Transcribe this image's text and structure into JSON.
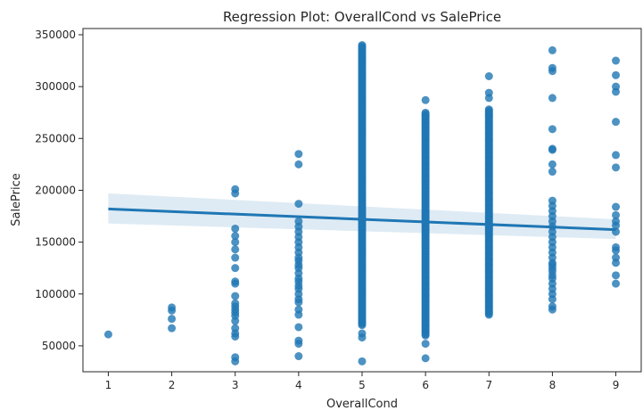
{
  "chart_data": {
    "type": "scatter",
    "title": "Regression Plot: OverallCond vs SalePrice",
    "xlabel": "OverallCond",
    "ylabel": "SalePrice",
    "xlim": [
      0.6,
      9.4
    ],
    "ylim": [
      25000,
      356000
    ],
    "xticks": [
      1,
      2,
      3,
      4,
      5,
      6,
      7,
      8,
      9
    ],
    "yticks": [
      50000,
      100000,
      150000,
      200000,
      250000,
      300000,
      350000
    ],
    "grid": false,
    "point_color": "#1f77b4",
    "points": [
      [
        1,
        61000
      ],
      [
        2,
        67000
      ],
      [
        2,
        76000
      ],
      [
        2,
        84000
      ],
      [
        2,
        87000
      ],
      [
        3,
        35000
      ],
      [
        3,
        39000
      ],
      [
        3,
        59000
      ],
      [
        3,
        62000
      ],
      [
        3,
        67000
      ],
      [
        3,
        74000
      ],
      [
        3,
        79000
      ],
      [
        3,
        82000
      ],
      [
        3,
        85000
      ],
      [
        3,
        88000
      ],
      [
        3,
        91000
      ],
      [
        3,
        98000
      ],
      [
        3,
        110000
      ],
      [
        3,
        112000
      ],
      [
        3,
        125000
      ],
      [
        3,
        135000
      ],
      [
        3,
        143000
      ],
      [
        3,
        150000
      ],
      [
        3,
        156000
      ],
      [
        3,
        163000
      ],
      [
        3,
        197000
      ],
      [
        3,
        201000
      ],
      [
        4,
        40000
      ],
      [
        4,
        52000
      ],
      [
        4,
        55000
      ],
      [
        4,
        68000
      ],
      [
        4,
        80000
      ],
      [
        4,
        85000
      ],
      [
        4,
        92000
      ],
      [
        4,
        95000
      ],
      [
        4,
        100000
      ],
      [
        4,
        105000
      ],
      [
        4,
        108000
      ],
      [
        4,
        112000
      ],
      [
        4,
        115000
      ],
      [
        4,
        120000
      ],
      [
        4,
        125000
      ],
      [
        4,
        128000
      ],
      [
        4,
        132000
      ],
      [
        4,
        135000
      ],
      [
        4,
        140000
      ],
      [
        4,
        145000
      ],
      [
        4,
        150000
      ],
      [
        4,
        155000
      ],
      [
        4,
        160000
      ],
      [
        4,
        165000
      ],
      [
        4,
        170000
      ],
      [
        4,
        187000
      ],
      [
        4,
        225000
      ],
      [
        4,
        235000
      ],
      [
        5,
        35000
      ],
      [
        5,
        58000
      ],
      [
        5,
        62000
      ],
      [
        6,
        38000
      ],
      [
        6,
        52000
      ],
      [
        6,
        287000
      ],
      [
        7,
        310000
      ],
      [
        7,
        294000
      ],
      [
        7,
        289000
      ],
      [
        8,
        85000
      ],
      [
        8,
        88000
      ],
      [
        8,
        95000
      ],
      [
        8,
        100000
      ],
      [
        8,
        105000
      ],
      [
        8,
        110000
      ],
      [
        8,
        115000
      ],
      [
        8,
        118000
      ],
      [
        8,
        122000
      ],
      [
        8,
        125000
      ],
      [
        8,
        128000
      ],
      [
        8,
        130000
      ],
      [
        8,
        135000
      ],
      [
        8,
        140000
      ],
      [
        8,
        145000
      ],
      [
        8,
        150000
      ],
      [
        8,
        155000
      ],
      [
        8,
        160000
      ],
      [
        8,
        165000
      ],
      [
        8,
        170000
      ],
      [
        8,
        175000
      ],
      [
        8,
        180000
      ],
      [
        8,
        185000
      ],
      [
        8,
        190000
      ],
      [
        8,
        218000
      ],
      [
        8,
        225000
      ],
      [
        8,
        239000
      ],
      [
        8,
        240000
      ],
      [
        8,
        259000
      ],
      [
        8,
        289000
      ],
      [
        8,
        315000
      ],
      [
        8,
        318000
      ],
      [
        8,
        335000
      ],
      [
        9,
        110000
      ],
      [
        9,
        118000
      ],
      [
        9,
        130000
      ],
      [
        9,
        135000
      ],
      [
        9,
        142000
      ],
      [
        9,
        145000
      ],
      [
        9,
        160000
      ],
      [
        9,
        166000
      ],
      [
        9,
        170000
      ],
      [
        9,
        176000
      ],
      [
        9,
        184000
      ],
      [
        9,
        222000
      ],
      [
        9,
        234000
      ],
      [
        9,
        266000
      ],
      [
        9,
        295000
      ],
      [
        9,
        300000
      ],
      [
        9,
        311000
      ],
      [
        9,
        325000
      ]
    ],
    "dense_columns": [
      {
        "x": 5,
        "y_min": 70000,
        "y_max": 340000
      },
      {
        "x": 6,
        "y_min": 60000,
        "y_max": 275000
      },
      {
        "x": 7,
        "y_min": 80000,
        "y_max": 278000
      }
    ],
    "regression": {
      "x": [
        1,
        9
      ],
      "y": [
        182000,
        162000
      ],
      "ci_lower": [
        168000,
        153000
      ],
      "ci_upper": [
        197000,
        172000
      ],
      "color": "#1f77b4",
      "ci_color": "#1f77b4"
    }
  }
}
